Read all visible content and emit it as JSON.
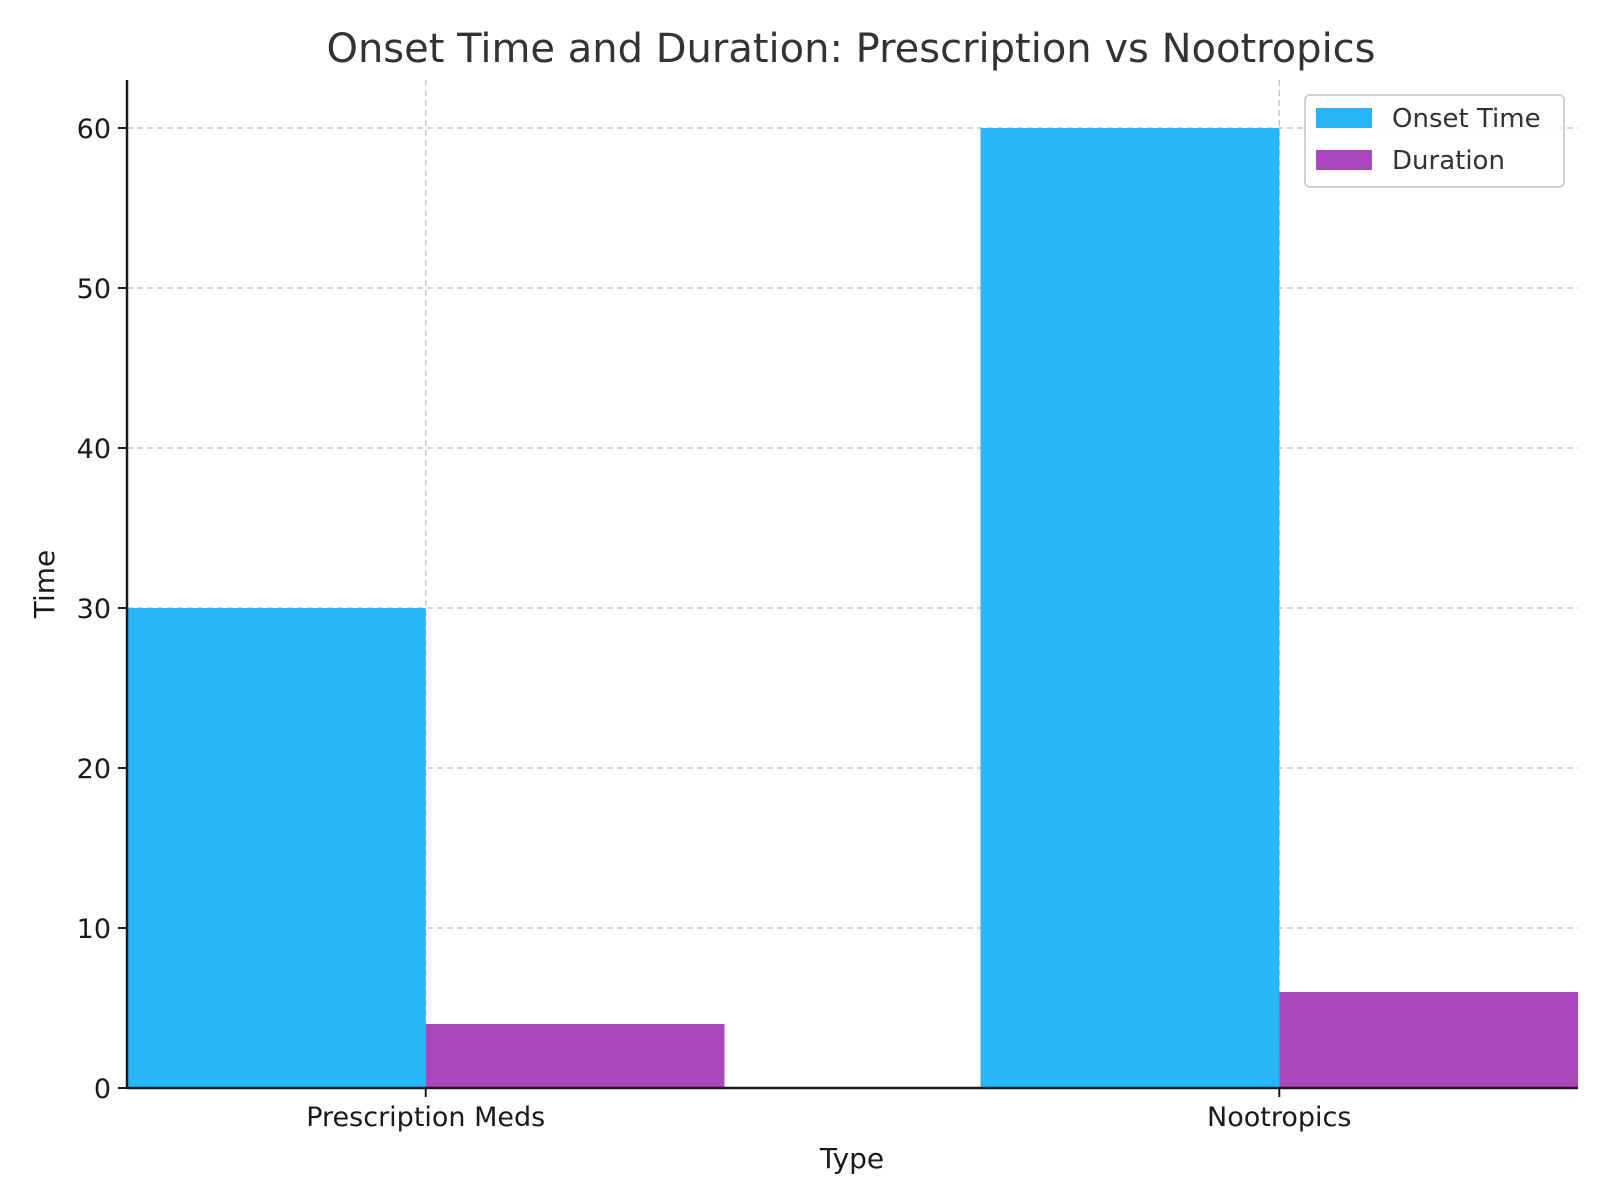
{
  "chart_data": {
    "type": "bar",
    "title": "Onset Time and Duration: Prescription vs Nootropics",
    "xlabel": "Type",
    "ylabel": "Time",
    "categories": [
      "Prescription Meds",
      "Nootropics"
    ],
    "series": [
      {
        "name": "Onset Time",
        "values": [
          30,
          60
        ],
        "color": "#29b6f6"
      },
      {
        "name": "Duration",
        "values": [
          4,
          6
        ],
        "color": "#ab47bc"
      }
    ],
    "yticks": [
      0,
      10,
      20,
      30,
      40,
      50,
      60
    ],
    "ylim": [
      0,
      63
    ],
    "grid": true,
    "legend_position": "top-right"
  }
}
